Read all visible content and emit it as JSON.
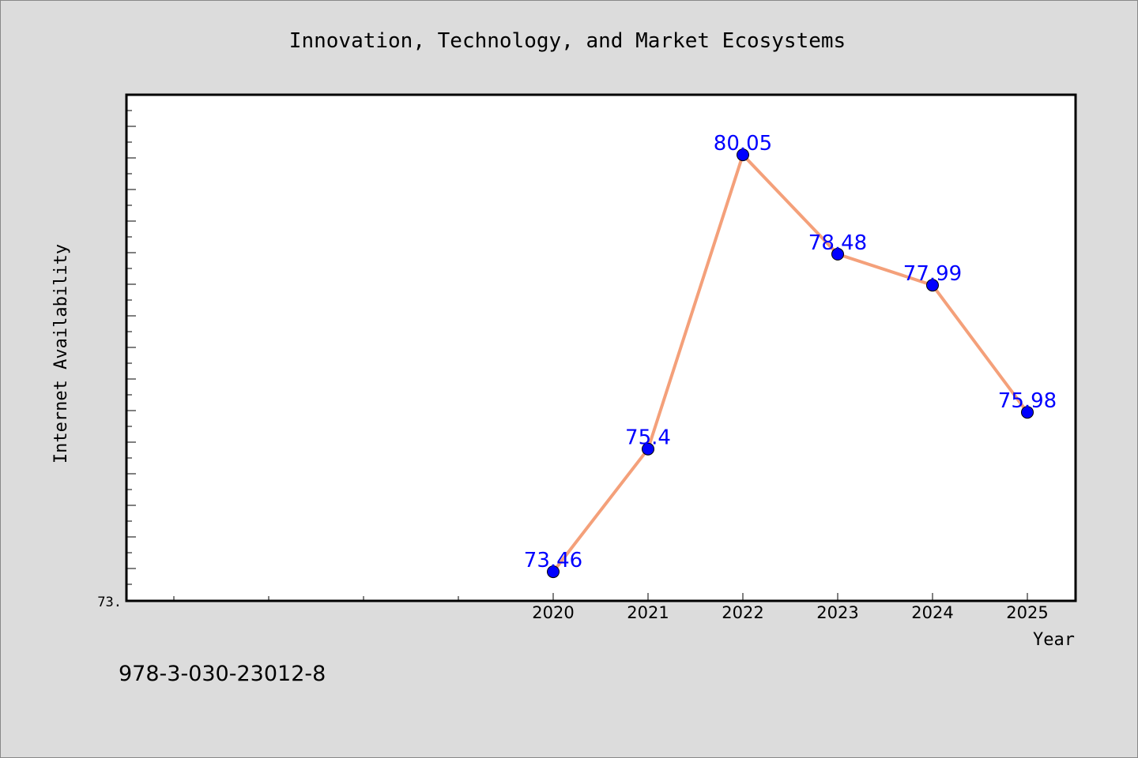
{
  "chart_data": {
    "type": "line",
    "title": "Innovation, Technology, and Market Ecosystems",
    "xlabel": "Year",
    "ylabel": "Internet Availability",
    "x": [
      "2020",
      "2021",
      "2022",
      "2023",
      "2024",
      "2025"
    ],
    "series": [
      {
        "values": [
          73.46,
          75.4,
          80.05,
          78.48,
          77.99,
          75.98
        ]
      }
    ],
    "data_labels": [
      "73.46",
      "75.4",
      "80.05",
      "78.48",
      "77.99",
      "75.98"
    ],
    "y_tick_label": "73.",
    "ylim": [
      73.0,
      81.0
    ],
    "grid": false,
    "line_color": "#f4a07a",
    "marker_color": "#0000ff",
    "label_color": "#0000ff"
  },
  "footer_note": "978-3-030-23012-8"
}
